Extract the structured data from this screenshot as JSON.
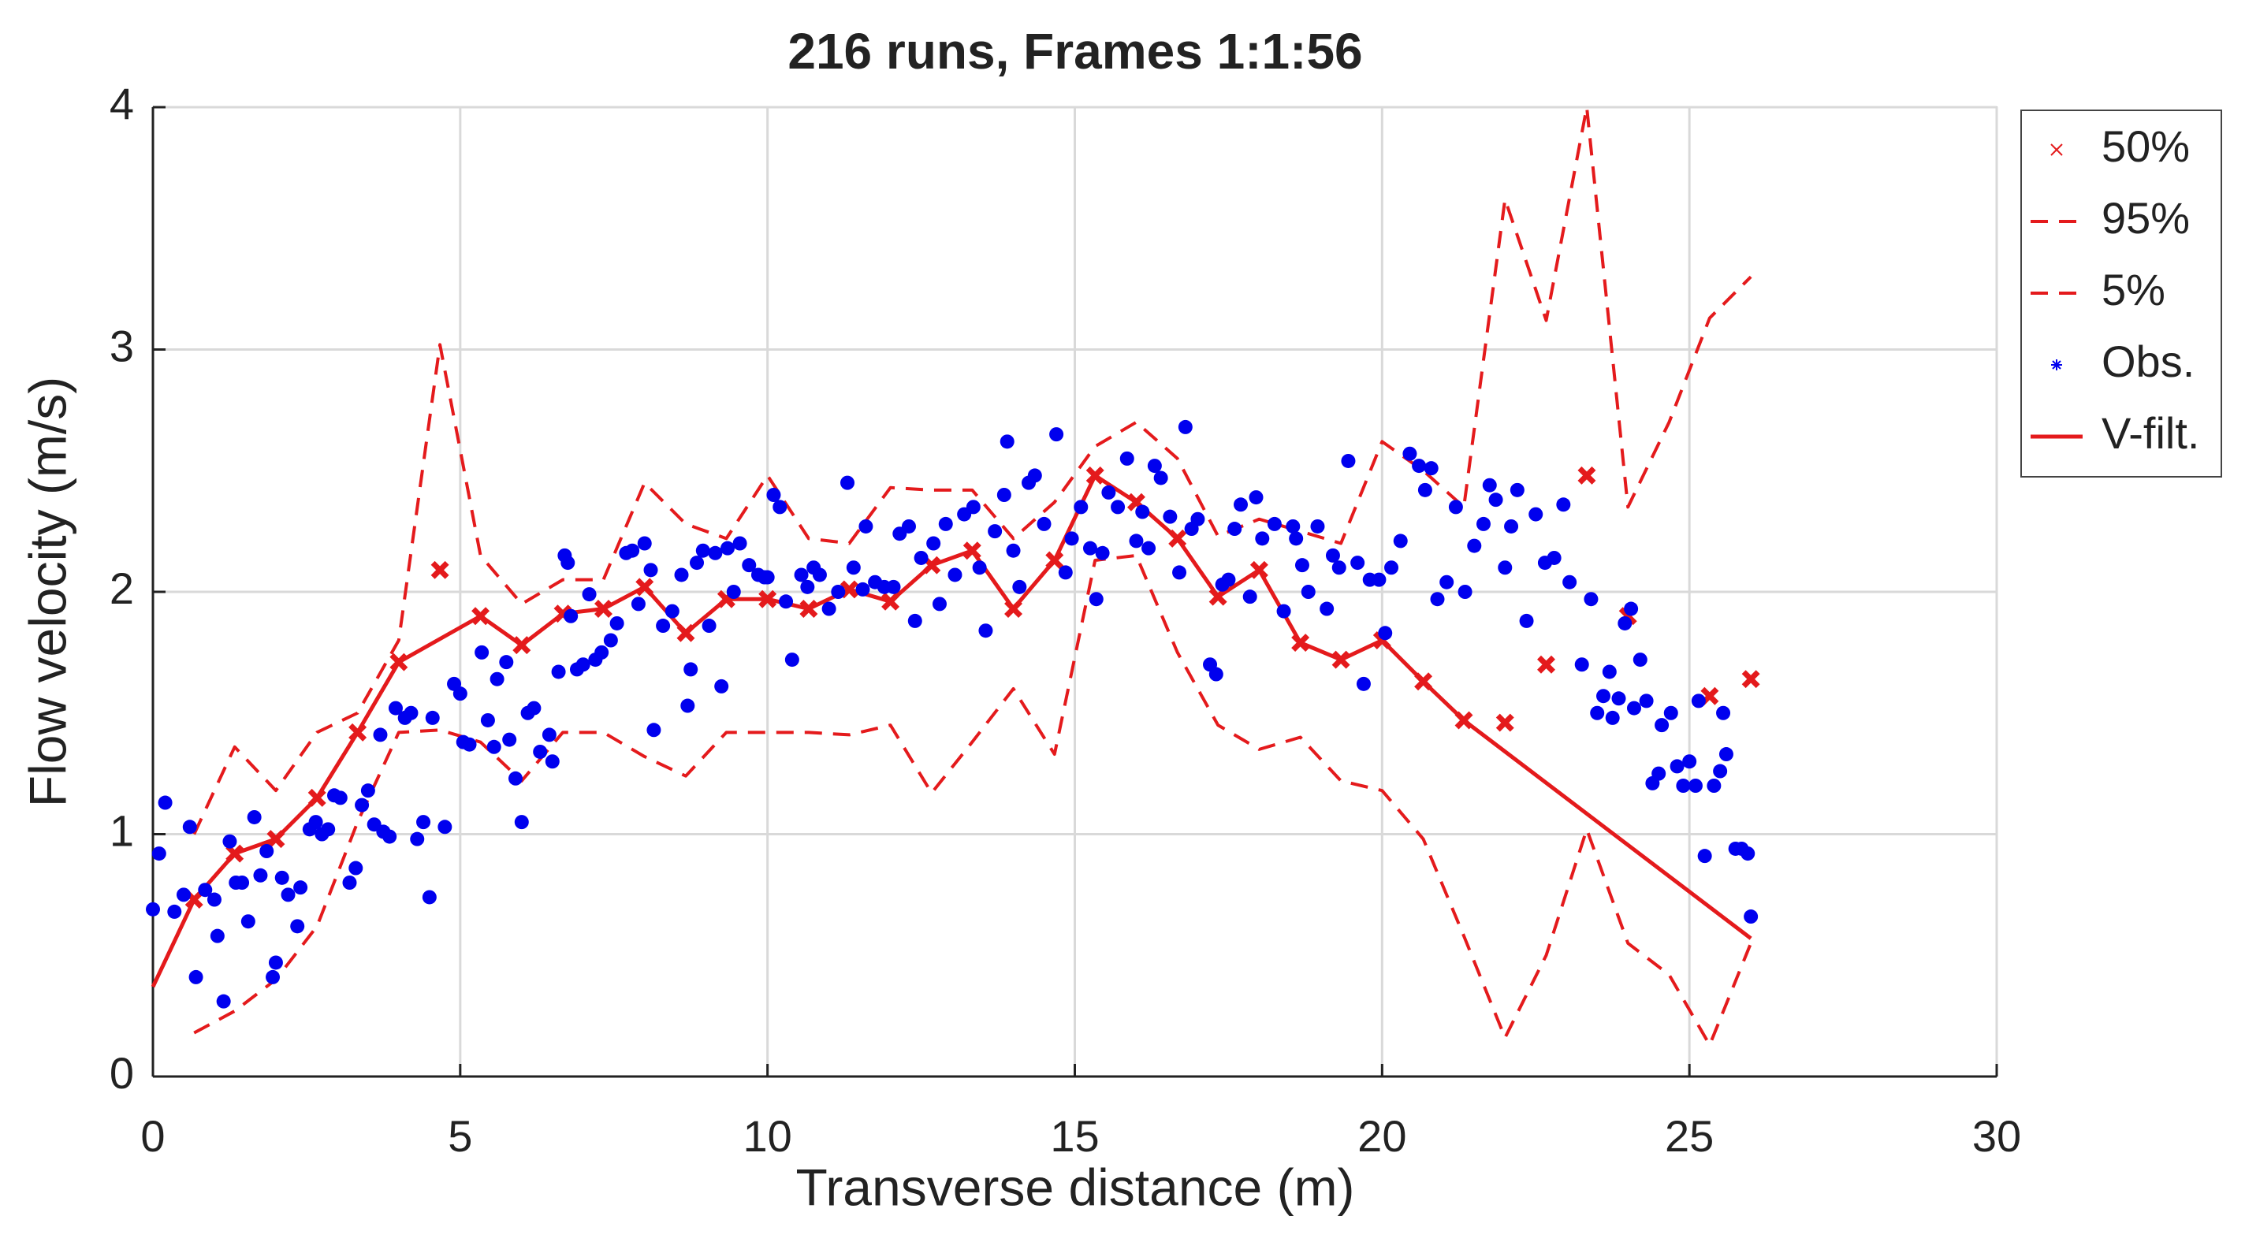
{
  "chart_data": {
    "type": "line",
    "title": "216 runs, Frames 1:1:56",
    "xlabel": "Transverse distance (m)",
    "ylabel": "Flow velocity (m/s)",
    "xlim": [
      0,
      30
    ],
    "ylim": [
      0,
      4
    ],
    "xticks": [
      0,
      5,
      10,
      15,
      20,
      25,
      30
    ],
    "yticks": [
      0,
      1,
      2,
      3,
      4
    ],
    "grid": true,
    "legend": "outside-right",
    "series": [
      {
        "name": "50%",
        "color": "#e41a1c",
        "mode": "markers",
        "marker": "x",
        "x": [
          0.67,
          1.33,
          2.0,
          2.67,
          3.33,
          4.0,
          4.67,
          5.33,
          6.0,
          6.67,
          7.33,
          8.0,
          8.67,
          9.33,
          10.0,
          10.67,
          11.33,
          12.0,
          12.67,
          13.33,
          14.0,
          14.67,
          15.33,
          16.0,
          16.67,
          17.33,
          18.0,
          18.67,
          19.33,
          20.0,
          20.67,
          21.33,
          22.0,
          22.67,
          23.33,
          24.0,
          25.33,
          26.0
        ],
        "values": [
          0.73,
          0.92,
          0.98,
          1.15,
          1.42,
          1.71,
          2.09,
          1.9,
          1.78,
          1.91,
          1.93,
          2.02,
          1.83,
          1.97,
          1.97,
          1.93,
          2.01,
          1.96,
          2.11,
          2.17,
          1.93,
          2.13,
          2.48,
          2.37,
          2.22,
          1.98,
          2.09,
          1.79,
          1.72,
          1.8,
          1.63,
          1.47,
          1.46,
          1.7,
          2.48,
          1.9,
          1.57,
          1.64
        ]
      },
      {
        "name": "95%",
        "color": "#e41a1c",
        "mode": "lines",
        "dash": true,
        "x": [
          0.67,
          1.33,
          2.0,
          2.67,
          3.33,
          4.0,
          4.67,
          5.33,
          6.0,
          6.67,
          7.33,
          8.0,
          8.67,
          9.33,
          10.0,
          10.67,
          11.33,
          12.0,
          12.67,
          13.33,
          14.0,
          14.67,
          15.33,
          16.0,
          16.67,
          17.33,
          18.0,
          18.67,
          19.33,
          20.0,
          20.67,
          21.33,
          22.0,
          22.67,
          23.33,
          24.0,
          24.67,
          25.33,
          26.0
        ],
        "values": [
          1.0,
          1.36,
          1.18,
          1.42,
          1.5,
          1.8,
          3.02,
          2.15,
          1.95,
          2.05,
          2.05,
          2.45,
          2.28,
          2.22,
          2.48,
          2.22,
          2.2,
          2.43,
          2.42,
          2.42,
          2.22,
          2.37,
          2.6,
          2.7,
          2.55,
          2.23,
          2.3,
          2.25,
          2.2,
          2.62,
          2.5,
          2.35,
          3.62,
          3.12,
          4.0,
          2.35,
          2.7,
          3.13,
          3.3
        ]
      },
      {
        "name": "5%",
        "color": "#e41a1c",
        "mode": "lines",
        "dash": true,
        "x": [
          0.67,
          1.33,
          2.0,
          2.67,
          3.33,
          4.0,
          4.67,
          5.33,
          6.0,
          6.67,
          7.33,
          8.0,
          8.67,
          9.33,
          10.0,
          10.67,
          11.33,
          12.0,
          12.67,
          13.33,
          14.0,
          14.67,
          15.33,
          16.0,
          16.67,
          17.33,
          18.0,
          18.67,
          19.33,
          20.0,
          20.67,
          21.33,
          22.0,
          22.67,
          23.33,
          24.0,
          24.67,
          25.33,
          26.0
        ],
        "values": [
          0.18,
          0.27,
          0.4,
          0.62,
          1.05,
          1.42,
          1.43,
          1.38,
          1.22,
          1.42,
          1.42,
          1.32,
          1.24,
          1.42,
          1.42,
          1.42,
          1.41,
          1.45,
          1.17,
          1.38,
          1.6,
          1.33,
          2.13,
          2.15,
          1.75,
          1.45,
          1.35,
          1.4,
          1.22,
          1.18,
          0.98,
          0.58,
          0.16,
          0.5,
          1.02,
          0.55,
          0.42,
          0.13,
          0.55
        ]
      },
      {
        "name": "Obs.",
        "color": "#0000ee",
        "mode": "markers",
        "marker": "dot",
        "x": [
          0,
          0.1,
          0.2,
          0.35,
          0.5,
          0.6,
          0.7,
          0.85,
          1.0,
          1.05,
          1.15,
          1.25,
          1.35,
          1.45,
          1.55,
          1.65,
          1.75,
          1.85,
          1.95,
          2.0,
          2.1,
          2.2,
          2.35,
          2.4,
          2.55,
          2.65,
          2.75,
          2.85,
          2.95,
          3.05,
          3.2,
          3.3,
          3.4,
          3.5,
          3.6,
          3.7,
          3.75,
          3.85,
          3.95,
          4.1,
          4.2,
          4.3,
          4.4,
          4.5,
          4.55,
          4.75,
          4.9,
          5.0,
          5.05,
          5.15,
          5.35,
          5.45,
          5.55,
          5.6,
          5.75,
          5.8,
          5.9,
          6.0,
          6.1,
          6.2,
          6.3,
          6.45,
          6.5,
          6.6,
          6.7,
          6.75,
          6.8,
          6.9,
          7.0,
          7.1,
          7.2,
          7.3,
          7.45,
          7.55,
          7.7,
          7.8,
          7.9,
          8.0,
          8.1,
          8.15,
          8.3,
          8.45,
          8.6,
          8.7,
          8.75,
          8.85,
          8.95,
          9.05,
          9.15,
          9.25,
          9.35,
          9.45,
          9.55,
          9.7,
          9.85,
          9.95,
          10.0,
          10.1,
          10.2,
          10.3,
          10.4,
          10.55,
          10.65,
          10.75,
          10.85,
          11.0,
          11.15,
          11.3,
          11.4,
          11.55,
          11.6,
          11.75,
          11.9,
          12.05,
          12.15,
          12.3,
          12.4,
          12.5,
          12.7,
          12.8,
          12.9,
          13.05,
          13.2,
          13.35,
          13.45,
          13.55,
          13.7,
          13.85,
          13.9,
          14.0,
          14.1,
          14.25,
          14.35,
          14.5,
          14.7,
          14.85,
          14.95,
          15.1,
          15.25,
          15.35,
          15.45,
          15.55,
          15.7,
          15.85,
          16.0,
          16.1,
          16.2,
          16.3,
          16.4,
          16.55,
          16.7,
          16.8,
          16.9,
          17.0,
          17.2,
          17.3,
          17.4,
          17.5,
          17.6,
          17.7,
          17.85,
          17.95,
          18.05,
          18.25,
          18.4,
          18.55,
          18.6,
          18.7,
          18.8,
          18.95,
          19.1,
          19.2,
          19.3,
          19.45,
          19.6,
          19.7,
          19.8,
          19.95,
          20.05,
          20.15,
          20.3,
          20.45,
          20.6,
          20.7,
          20.8,
          20.9,
          21.05,
          21.2,
          21.35,
          21.5,
          21.65,
          21.75,
          21.85,
          22.0,
          22.1,
          22.2,
          22.35,
          22.5,
          22.65,
          22.8,
          22.95,
          23.05,
          23.25,
          23.4,
          23.5,
          23.6,
          23.7,
          23.75,
          23.85,
          23.95,
          24.05,
          24.1,
          24.2,
          24.3,
          24.4,
          24.5,
          24.55,
          24.7,
          24.8,
          24.9,
          25.0,
          25.1,
          25.15,
          25.25,
          25.4,
          25.5,
          25.55,
          25.6,
          25.75,
          25.85,
          25.95,
          26.0
        ],
        "values": [
          0.69,
          0.92,
          1.13,
          0.68,
          0.75,
          1.03,
          0.41,
          0.77,
          0.73,
          0.58,
          0.31,
          0.97,
          0.8,
          0.8,
          0.64,
          1.07,
          0.83,
          0.93,
          0.41,
          0.47,
          0.82,
          0.75,
          0.62,
          0.78,
          1.02,
          1.05,
          1.0,
          1.02,
          1.16,
          1.15,
          0.8,
          0.86,
          1.12,
          1.18,
          1.04,
          1.41,
          1.01,
          0.99,
          1.52,
          1.48,
          1.5,
          0.98,
          1.05,
          0.74,
          1.48,
          1.03,
          1.62,
          1.58,
          1.38,
          1.37,
          1.75,
          1.47,
          1.36,
          1.64,
          1.71,
          1.39,
          1.23,
          1.05,
          1.5,
          1.52,
          1.34,
          1.41,
          1.3,
          1.67,
          2.15,
          2.12,
          1.9,
          1.68,
          1.7,
          1.99,
          1.72,
          1.75,
          1.8,
          1.87,
          2.16,
          2.17,
          1.95,
          2.2,
          2.09,
          1.43,
          1.86,
          1.92,
          2.07,
          1.53,
          1.68,
          2.12,
          2.17,
          1.86,
          2.16,
          1.61,
          2.18,
          2.0,
          2.2,
          2.11,
          2.07,
          2.06,
          2.06,
          2.4,
          2.35,
          1.96,
          1.72,
          2.07,
          2.02,
          2.1,
          2.07,
          1.93,
          2.0,
          2.45,
          2.1,
          2.01,
          2.27,
          2.04,
          2.02,
          2.02,
          2.24,
          2.27,
          1.88,
          2.14,
          2.2,
          1.95,
          2.28,
          2.07,
          2.32,
          2.35,
          2.1,
          1.84,
          2.25,
          2.4,
          2.62,
          2.17,
          2.02,
          2.45,
          2.48,
          2.28,
          2.65,
          2.08,
          2.22,
          2.35,
          2.18,
          1.97,
          2.16,
          2.41,
          2.35,
          2.55,
          2.21,
          2.33,
          2.18,
          2.52,
          2.47,
          2.31,
          2.08,
          2.68,
          2.26,
          2.3,
          1.7,
          1.66,
          2.03,
          2.05,
          2.26,
          2.36,
          1.98,
          2.39,
          2.22,
          2.28,
          1.92,
          2.27,
          2.22,
          2.11,
          2.0,
          2.27,
          1.93,
          2.15,
          2.1,
          2.54,
          2.12,
          1.62,
          2.05,
          2.05,
          1.83,
          2.1,
          2.21,
          2.57,
          2.52,
          2.42,
          2.51,
          1.97,
          2.04,
          2.35,
          2.0,
          2.19,
          2.28,
          2.44,
          2.38,
          2.1,
          2.27,
          2.42,
          1.88,
          2.32,
          2.12,
          2.14,
          2.36,
          2.04,
          1.7,
          1.97,
          1.5,
          1.57,
          1.67,
          1.48,
          1.56,
          1.87,
          1.93,
          1.52,
          1.72,
          1.55,
          1.21,
          1.25,
          1.45,
          1.5,
          1.28,
          1.2,
          1.3,
          1.2,
          1.55,
          0.91,
          1.2,
          1.26,
          1.5,
          1.33,
          0.94,
          0.94,
          0.92,
          0.66
        ]
      },
      {
        "name": "V-filt.",
        "color": "#e41a1c",
        "mode": "lines",
        "dash": false,
        "x": [
          0,
          0.67,
          1.33,
          2.0,
          2.67,
          3.33,
          4.0,
          5.33,
          6.0,
          6.67,
          7.33,
          8.0,
          8.67,
          9.33,
          10.0,
          10.67,
          11.33,
          12.0,
          12.67,
          13.33,
          14.0,
          14.67,
          15.33,
          16.0,
          16.67,
          17.33,
          18.0,
          18.67,
          19.33,
          20.0,
          20.67,
          21.33,
          26.0
        ],
        "values": [
          0.37,
          0.73,
          0.92,
          0.98,
          1.15,
          1.42,
          1.71,
          1.9,
          1.78,
          1.91,
          1.93,
          2.02,
          1.83,
          1.97,
          1.97,
          1.93,
          2.01,
          1.96,
          2.11,
          2.17,
          1.93,
          2.13,
          2.48,
          2.37,
          2.22,
          1.98,
          2.09,
          1.79,
          1.72,
          1.8,
          1.63,
          1.47,
          0.57
        ]
      }
    ]
  }
}
